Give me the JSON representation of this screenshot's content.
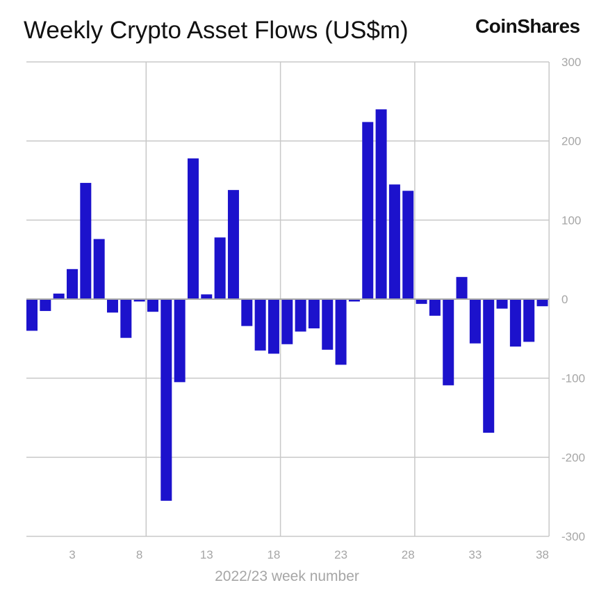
{
  "chart_data": {
    "type": "bar",
    "title": "Weekly Crypto Asset Flows (US$m)",
    "brand": "CoinShares",
    "xlabel": "2022/23 week number",
    "ylabel": "",
    "x": [
      0,
      1,
      2,
      3,
      4,
      5,
      6,
      7,
      8,
      9,
      10,
      11,
      12,
      13,
      14,
      15,
      16,
      17,
      18,
      19,
      20,
      21,
      22,
      23,
      24,
      25,
      26,
      27,
      28,
      29,
      30,
      31,
      32,
      33,
      34,
      35,
      36,
      37,
      38
    ],
    "values": [
      -40,
      -15,
      7,
      38,
      147,
      76,
      -17,
      -49,
      -3,
      -16,
      -255,
      -105,
      178,
      6,
      78,
      138,
      -34,
      -65,
      -69,
      -57,
      -41,
      -37,
      -64,
      -83,
      -3,
      224,
      240,
      145,
      137,
      -6,
      -21,
      -109,
      28,
      -56,
      -169,
      -12,
      -60,
      -54,
      -9
    ],
    "xticks": [
      3,
      8,
      13,
      18,
      23,
      28,
      33,
      38
    ],
    "yticks": [
      300,
      200,
      100,
      0,
      -100,
      -200,
      -300
    ],
    "ylim": [
      -300,
      300
    ],
    "yaxis_position": "right",
    "grid": true,
    "bar_color": "#1c12cc"
  }
}
